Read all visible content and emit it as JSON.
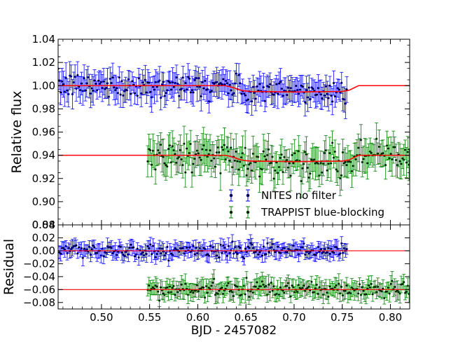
{
  "chart_data": [
    {
      "type": "scatter",
      "panel": "top",
      "ylabel": "Relative flux",
      "xlim": [
        0.455,
        0.82
      ],
      "ylim": [
        0.88,
        1.04
      ],
      "grid": false,
      "legend_placement": "lower-right",
      "x_ticks": [
        "0.50",
        "0.55",
        "0.60",
        "0.65",
        "0.70",
        "0.75",
        "0.80"
      ],
      "y_ticks": [
        "0.88",
        "0.90",
        "0.92",
        "0.94",
        "0.96",
        "0.98",
        "1.00",
        "1.02",
        "1.04"
      ],
      "series": [
        {
          "name": "NITES no filter",
          "kind": "points-with-errorbars",
          "color": "#0000ff",
          "x_range": [
            0.455,
            0.755
          ],
          "baseline": 1.0,
          "in_transit_level": 0.9945,
          "typical_scatter": 0.007,
          "typical_errorbar": 0.01
        },
        {
          "name": "TRAPPIST blue-blocking",
          "kind": "points-with-errorbars",
          "color": "#008000",
          "x_range": [
            0.548,
            0.82
          ],
          "baseline": 0.94,
          "in_transit_level": 0.9345,
          "typical_scatter": 0.008,
          "typical_errorbar": 0.012
        },
        {
          "kind": "model",
          "color": "#ff0000",
          "x": [
            0.455,
            0.628,
            0.633,
            0.638,
            0.643,
            0.648,
            0.655,
            0.7,
            0.75,
            0.757,
            0.762,
            0.767,
            0.82
          ],
          "y": [
            1.0,
            1.0,
            0.9992,
            0.998,
            0.9965,
            0.9955,
            0.995,
            0.9945,
            0.995,
            0.996,
            0.998,
            1.0,
            1.0
          ]
        },
        {
          "kind": "model",
          "color": "#ff0000",
          "x": [
            0.455,
            0.628,
            0.633,
            0.638,
            0.643,
            0.648,
            0.655,
            0.7,
            0.75,
            0.757,
            0.762,
            0.767,
            0.82
          ],
          "y": [
            0.94,
            0.94,
            0.9392,
            0.938,
            0.9365,
            0.9355,
            0.935,
            0.9345,
            0.935,
            0.936,
            0.938,
            0.94,
            0.94
          ]
        }
      ]
    },
    {
      "type": "scatter",
      "panel": "bottom",
      "ylabel": "Residual",
      "xlabel": "BJD - 2457082",
      "xlim": [
        0.455,
        0.82
      ],
      "ylim": [
        -0.09,
        0.04
      ],
      "grid": false,
      "x_ticks": [
        "0.50",
        "0.55",
        "0.60",
        "0.65",
        "0.70",
        "0.75",
        "0.80"
      ],
      "y_ticks": [
        "0.04",
        "0.02",
        "0.00",
        "−0.02",
        "−0.04",
        "−0.06",
        "−0.08"
      ],
      "series": [
        {
          "kind": "points-with-errorbars",
          "color": "#0000ff",
          "x_range": [
            0.455,
            0.755
          ],
          "baseline": 0.0,
          "typical_scatter": 0.007,
          "typical_errorbar": 0.01
        },
        {
          "kind": "points-with-errorbars",
          "color": "#008000",
          "x_range": [
            0.548,
            0.82
          ],
          "baseline": -0.06,
          "typical_scatter": 0.008,
          "typical_errorbar": 0.012
        },
        {
          "kind": "reference-line",
          "color": "#ff0000",
          "y": 0.0
        },
        {
          "kind": "reference-line",
          "color": "#ff0000",
          "y": -0.06
        }
      ]
    }
  ]
}
